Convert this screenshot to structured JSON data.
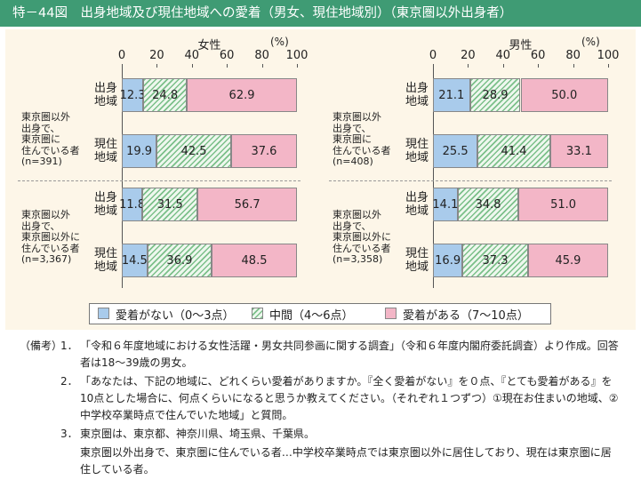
{
  "header": {
    "title": "特－44図　出身地域及び現住地域への愛着（男女、現住地域別）（東京圏以外出身者）"
  },
  "chart_data": [
    {
      "type": "stacked-bar-horizontal",
      "title": "女性",
      "unit": "(%)",
      "categories": [
        "出身地域",
        "現住地域",
        "出身地域",
        "現住地域"
      ],
      "group_labels": [
        [
          "東京圏以外",
          "出身で、",
          "東京圏に",
          "住んでいる者",
          "(n=391)"
        ],
        [
          "東京圏以外",
          "出身で、",
          "東京圏以外に",
          "住んでいる者",
          "(n=3,367)"
        ]
      ],
      "xlim": [
        0,
        100
      ],
      "xticks": [
        0,
        20,
        40,
        60,
        80,
        100
      ],
      "series": [
        {
          "name": "愛着がない（0～3点）",
          "color": "#a9cbeb",
          "values": [
            12.3,
            19.9,
            11.8,
            14.5
          ]
        },
        {
          "name": "中間（4～6点）",
          "color": "#7cc08a",
          "pattern": "hatch",
          "values": [
            24.8,
            42.5,
            31.5,
            36.9
          ]
        },
        {
          "name": "愛着がある（7～10点）",
          "color": "#f3b6c7",
          "values": [
            62.9,
            37.6,
            56.7,
            48.5
          ]
        }
      ]
    },
    {
      "type": "stacked-bar-horizontal",
      "title": "男性",
      "unit": "(%)",
      "categories": [
        "出身地域",
        "現住地域",
        "出身地域",
        "現住地域"
      ],
      "group_labels": [
        [
          "東京圏以外",
          "出身で、",
          "東京圏に",
          "住んでいる者",
          "(n=408)"
        ],
        [
          "東京圏以外",
          "出身で、",
          "東京圏以外に",
          "住んでいる者",
          "(n=3,358)"
        ]
      ],
      "xlim": [
        0,
        100
      ],
      "xticks": [
        0,
        20,
        40,
        60,
        80,
        100
      ],
      "series": [
        {
          "name": "愛着がない（0～3点）",
          "color": "#a9cbeb",
          "values": [
            21.1,
            25.5,
            14.1,
            16.9
          ]
        },
        {
          "name": "中間（4～6点）",
          "color": "#7cc08a",
          "pattern": "hatch",
          "values": [
            28.9,
            41.4,
            34.8,
            37.3
          ]
        },
        {
          "name": "愛着がある（7～10点）",
          "color": "#f3b6c7",
          "values": [
            50.0,
            33.1,
            51.0,
            45.9
          ],
          "value_labels": [
            "50.0",
            "33.1",
            "51.0",
            "45.9"
          ]
        }
      ]
    }
  ],
  "notes": {
    "label": "（備考）",
    "items": [
      {
        "num": "1．",
        "text": [
          "「令和６年度地域における女性活躍・男女共同参画に関する調査」（令和６年度内閣府委託調査）より作成。回答者は18～39歳の男女。"
        ]
      },
      {
        "num": "2．",
        "text": [
          "「あなたは、下記の地域に、どれくらい愛着がありますか。『全く愛着がない』を０点、『とても愛着がある』を10点とした場合に、何点くらいになると思うか教えてください。（それぞれ１つずつ）①現在お住まいの地域、②中学校卒業時点で住んでいた地域」と質問。"
        ]
      },
      {
        "num": "3．",
        "text": [
          "東京圏は、東京都、神奈川県、埼玉県、千葉県。",
          "東京圏以外出身で、東京圏に住んでいる者…中学校卒業時点では東京圏以外に居住しており、現在は東京圏に居住している者。",
          "東京圏以外出身で、東京圏以外に住んでいる者…中学校卒業時点も、現在も東京圏以外に居住している者。"
        ]
      }
    ]
  }
}
